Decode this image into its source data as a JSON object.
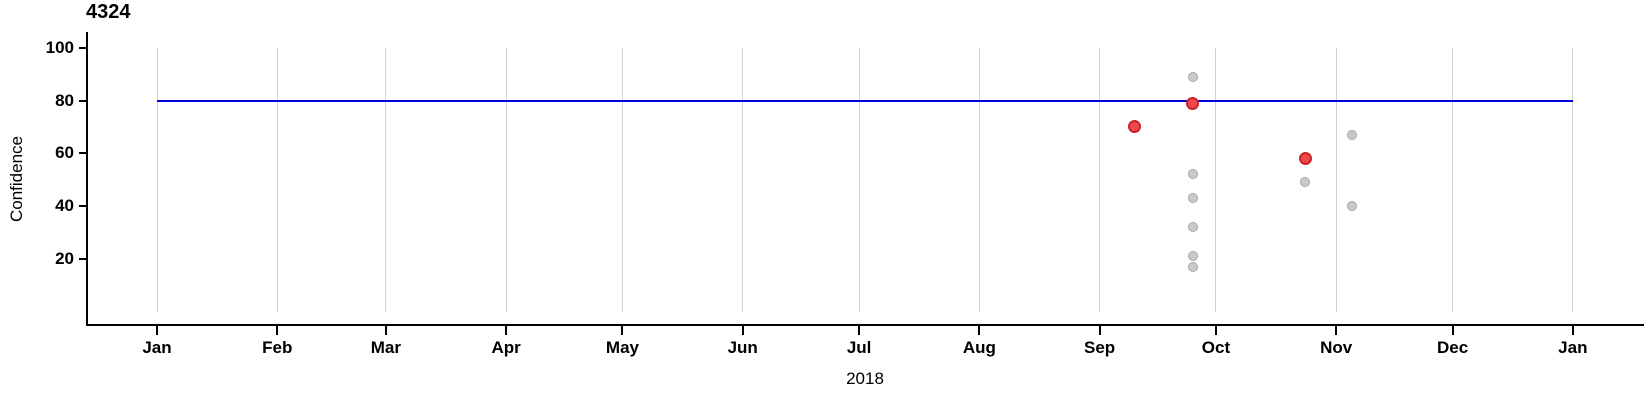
{
  "chart_data": {
    "type": "scatter",
    "title": "4324",
    "ylabel": "Confidence",
    "xlabel": "2018",
    "ylim": [
      0,
      100
    ],
    "grid": {
      "color": "#d3d3d3",
      "span_values": [
        0,
        100
      ],
      "orientation": "vertical"
    },
    "y_axis": {
      "ticks": [
        20,
        40,
        60,
        80,
        100
      ]
    },
    "x_axis": {
      "ticks": [
        {
          "label": "Jan",
          "day": 0
        },
        {
          "label": "Feb",
          "day": 31
        },
        {
          "label": "Mar",
          "day": 59
        },
        {
          "label": "Apr",
          "day": 90
        },
        {
          "label": "May",
          "day": 120
        },
        {
          "label": "Jun",
          "day": 151
        },
        {
          "label": "Jul",
          "day": 181
        },
        {
          "label": "Aug",
          "day": 212
        },
        {
          "label": "Sep",
          "day": 243
        },
        {
          "label": "Oct",
          "day": 273
        },
        {
          "label": "Nov",
          "day": 304
        },
        {
          "label": "Dec",
          "day": 334
        },
        {
          "label": "Jan",
          "day": 365
        }
      ],
      "year_label": "2018"
    },
    "ref_line": {
      "value": 80,
      "color": "#0000dd",
      "x_span_days": [
        0,
        365
      ]
    },
    "series": [
      {
        "name": "other",
        "color": "#c9c9c9",
        "stroke": "#a6a6a6",
        "diameter": 10,
        "stroke_width": 1,
        "points": [
          {
            "date": "2018-09-25",
            "day": 267,
            "value": 89
          },
          {
            "date": "2018-09-25",
            "day": 267,
            "value": 52
          },
          {
            "date": "2018-09-25",
            "day": 267,
            "value": 43
          },
          {
            "date": "2018-09-25",
            "day": 267,
            "value": 32
          },
          {
            "date": "2018-09-25",
            "day": 267,
            "value": 21
          },
          {
            "date": "2018-09-25",
            "day": 267,
            "value": 17
          },
          {
            "date": "2018-10-24",
            "day": 296,
            "value": 49
          },
          {
            "date": "2018-11-05",
            "day": 308,
            "value": 67
          },
          {
            "date": "2018-11-05",
            "day": 308,
            "value": 40
          }
        ]
      },
      {
        "name": "highlighted",
        "color": "#ec4a4d",
        "stroke": "#cb2429",
        "diameter": 13,
        "stroke_width": 2,
        "points": [
          {
            "date": "2018-09-10",
            "day": 252,
            "value": 70
          },
          {
            "date": "2018-09-25",
            "day": 267,
            "value": 79
          },
          {
            "date": "2018-10-24",
            "day": 296,
            "value": 58
          }
        ]
      }
    ],
    "axis_color": "#000000"
  }
}
